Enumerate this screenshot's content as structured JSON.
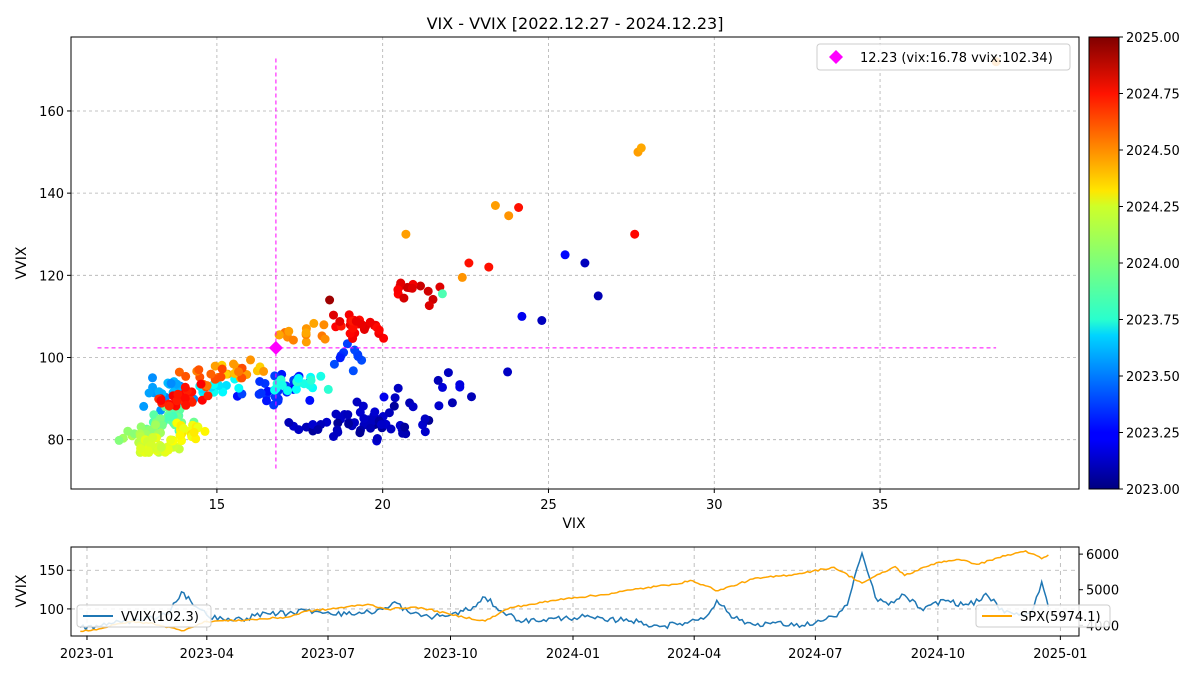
{
  "chart_data": [
    {
      "type": "scatter",
      "title": "VIX - VVIX [2022.12.27 - 2024.12.23]",
      "xlabel": "VIX",
      "ylabel": "VVIX",
      "xlim": [
        10.6,
        41.0
      ],
      "ylim": [
        68.0,
        178.0
      ],
      "xticks": [
        15,
        20,
        25,
        30,
        35
      ],
      "yticks": [
        80,
        100,
        120,
        140,
        160
      ],
      "grid": true,
      "colormap": "jet",
      "colorbar": {
        "vmin": 2023.0,
        "vmax": 2025.0,
        "ticks": [
          "2023.00",
          "2023.25",
          "2023.50",
          "2023.75",
          "2024.00",
          "2024.25",
          "2024.50",
          "2024.75",
          "2025.00"
        ]
      },
      "highlight": {
        "label": "12.23 (vix:16.78 vvix:102.34)",
        "x": 16.78,
        "y": 102.34,
        "color": "#ff00ff",
        "crosshair_x_range": [
          11.4,
          38.5
        ],
        "crosshair_y_range": [
          73,
          173.5
        ]
      },
      "legend_position": "top-right",
      "seed": 20241223
    },
    {
      "type": "line",
      "ylabel": "VVIX",
      "xticks": [
        "2023-01",
        "2023-04",
        "2023-07",
        "2023-10",
        "2024-01",
        "2024-04",
        "2024-07",
        "2024-10",
        "2025-01"
      ],
      "y_left_ticks": [
        100,
        150
      ],
      "y_right_ticks": [
        4000,
        5000,
        6000
      ],
      "y_left_range": [
        65,
        180
      ],
      "y_right_range": [
        3700,
        6200
      ],
      "grid": true,
      "series": [
        {
          "name": "VVIX(102.3)",
          "axis": "left",
          "color": "#1f77b4",
          "points": [
            [
              "2022-12-27",
              76
            ],
            [
              "2023-01-10",
              77
            ],
            [
              "2023-01-25",
              84
            ],
            [
              "2023-02-10",
              85
            ],
            [
              "2023-02-25",
              91
            ],
            [
              "2023-03-05",
              99
            ],
            [
              "2023-03-13",
              122
            ],
            [
              "2023-03-20",
              110
            ],
            [
              "2023-04-01",
              92
            ],
            [
              "2023-04-15",
              85
            ],
            [
              "2023-05-01",
              88
            ],
            [
              "2023-05-15",
              95
            ],
            [
              "2023-06-01",
              94
            ],
            [
              "2023-06-15",
              98
            ],
            [
              "2023-07-01",
              96
            ],
            [
              "2023-07-15",
              93
            ],
            [
              "2023-08-01",
              96
            ],
            [
              "2023-08-15",
              101
            ],
            [
              "2023-08-20",
              109
            ],
            [
              "2023-09-01",
              94
            ],
            [
              "2023-09-15",
              90
            ],
            [
              "2023-10-01",
              92
            ],
            [
              "2023-10-20",
              103
            ],
            [
              "2023-10-27",
              115
            ],
            [
              "2023-11-10",
              95
            ],
            [
              "2023-11-25",
              84
            ],
            [
              "2023-12-10",
              86
            ],
            [
              "2023-12-25",
              88
            ],
            [
              "2024-01-10",
              90
            ],
            [
              "2024-01-25",
              85
            ],
            [
              "2024-02-10",
              87
            ],
            [
              "2024-02-25",
              80
            ],
            [
              "2024-03-10",
              78
            ],
            [
              "2024-03-25",
              82
            ],
            [
              "2024-04-10",
              90
            ],
            [
              "2024-04-18",
              111
            ],
            [
              "2024-05-01",
              88
            ],
            [
              "2024-05-15",
              80
            ],
            [
              "2024-06-01",
              82
            ],
            [
              "2024-06-15",
              78
            ],
            [
              "2024-07-01",
              82
            ],
            [
              "2024-07-15",
              90
            ],
            [
              "2024-07-25",
              105
            ],
            [
              "2024-08-05",
              172
            ],
            [
              "2024-08-15",
              115
            ],
            [
              "2024-08-25",
              105
            ],
            [
              "2024-09-06",
              118
            ],
            [
              "2024-09-20",
              98
            ],
            [
              "2024-10-05",
              112
            ],
            [
              "2024-10-20",
              105
            ],
            [
              "2024-11-01",
              110
            ],
            [
              "2024-11-06",
              120
            ],
            [
              "2024-11-20",
              95
            ],
            [
              "2024-12-01",
              92
            ],
            [
              "2024-12-10",
              95
            ],
            [
              "2024-12-18",
              135
            ],
            [
              "2024-12-23",
              102.3
            ]
          ]
        },
        {
          "name": "SPX(5974.1)",
          "axis": "right",
          "color": "#ffa500",
          "points": [
            [
              "2022-12-27",
              3830
            ],
            [
              "2023-01-10",
              3900
            ],
            [
              "2023-02-01",
              4100
            ],
            [
              "2023-02-20",
              4050
            ],
            [
              "2023-03-13",
              3850
            ],
            [
              "2023-04-01",
              4110
            ],
            [
              "2023-05-01",
              4150
            ],
            [
              "2023-06-01",
              4230
            ],
            [
              "2023-06-15",
              4400
            ],
            [
              "2023-07-01",
              4450
            ],
            [
              "2023-07-31",
              4590
            ],
            [
              "2023-08-15",
              4450
            ],
            [
              "2023-09-01",
              4510
            ],
            [
              "2023-09-15",
              4450
            ],
            [
              "2023-10-01",
              4300
            ],
            [
              "2023-10-27",
              4120
            ],
            [
              "2023-11-15",
              4500
            ],
            [
              "2023-12-01",
              4590
            ],
            [
              "2023-12-29",
              4770
            ],
            [
              "2024-01-20",
              4840
            ],
            [
              "2024-02-15",
              5000
            ],
            [
              "2024-03-15",
              5150
            ],
            [
              "2024-03-31",
              5250
            ],
            [
              "2024-04-19",
              4970
            ],
            [
              "2024-05-15",
              5300
            ],
            [
              "2024-06-15",
              5430
            ],
            [
              "2024-07-15",
              5630
            ],
            [
              "2024-08-05",
              5190
            ],
            [
              "2024-08-30",
              5650
            ],
            [
              "2024-09-06",
              5400
            ],
            [
              "2024-09-30",
              5760
            ],
            [
              "2024-10-15",
              5850
            ],
            [
              "2024-11-01",
              5720
            ],
            [
              "2024-11-15",
              5900
            ],
            [
              "2024-12-06",
              6090
            ],
            [
              "2024-12-18",
              5870
            ],
            [
              "2024-12-23",
              5974.1
            ]
          ]
        }
      ]
    }
  ]
}
